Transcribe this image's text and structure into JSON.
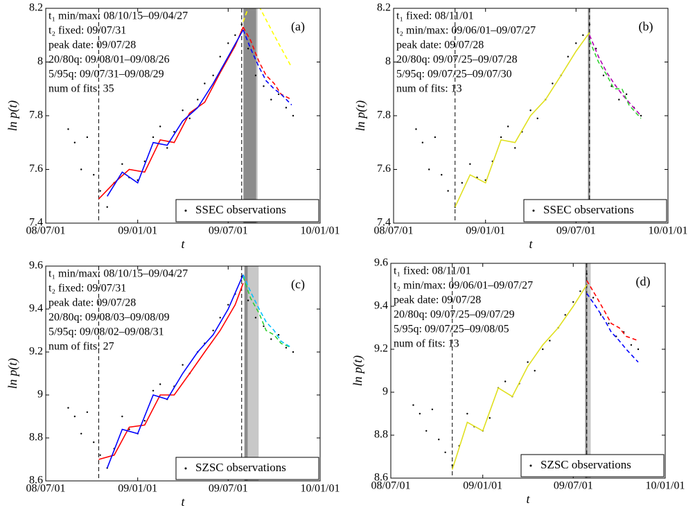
{
  "chart_data": [
    {
      "type": "scatter",
      "panel": "(a)",
      "xlabel": "t",
      "ylabel": "ln p(t)",
      "xlim": [
        "08/07/01",
        "10/01/01"
      ],
      "xticks": [
        "08/07/01",
        "09/01/01",
        "09/07/01",
        "10/01/01"
      ],
      "ylim": [
        7.4,
        8.2
      ],
      "yticks": [
        7.4,
        7.6,
        7.8,
        8,
        8.2
      ],
      "annotations": [
        "t₁ min/max: 08/10/15–09/04/27",
        "t₂ fixed: 09/07/31",
        "peak date: 09/07/28",
        "20/80q: 09/08/01–09/08/26",
        "5/95q: 09/07/31–09/08/29",
        "num of fits: 35"
      ],
      "vlines": [
        "08/10/15",
        "09/07/28"
      ],
      "bands": [
        {
          "x": [
            "09/07/31",
            "09/08/29"
          ],
          "color": "#c8c8c8"
        },
        {
          "x": [
            "09/08/01",
            "09/08/26"
          ],
          "color": "#8c8c8c"
        }
      ],
      "series": [
        {
          "name": "SSEC observations",
          "style": "dots",
          "color": "#000000",
          "x": [
            "08/08/15",
            "08/08/28",
            "08/09/10",
            "08/09/22",
            "08/10/05",
            "08/10/18",
            "08/11/01",
            "08/11/15",
            "08/12/01",
            "08/12/15",
            "09/01/01",
            "09/01/15",
            "09/02/01",
            "09/02/15",
            "09/03/01",
            "09/03/15",
            "09/04/01",
            "09/04/15",
            "09/05/01",
            "09/05/15",
            "09/06/01",
            "09/06/15",
            "09/07/01",
            "09/07/15",
            "09/07/28",
            "09/08/10",
            "09/08/25",
            "09/09/10",
            "09/09/25",
            "09/10/10",
            "09/10/25",
            "09/11/08"
          ],
          "values": [
            7.75,
            7.7,
            7.6,
            7.72,
            7.58,
            7.52,
            7.46,
            7.55,
            7.62,
            7.57,
            7.56,
            7.63,
            7.72,
            7.76,
            7.68,
            7.74,
            7.82,
            7.79,
            7.86,
            7.92,
            7.95,
            8.02,
            8.07,
            8.1,
            8.14,
            8.05,
            7.95,
            7.91,
            7.86,
            7.88,
            7.83,
            7.8
          ]
        },
        {
          "style": "solid",
          "color": "#ff0000",
          "x": [
            "08/10/15",
            "08/11/15",
            "08/12/15",
            "09/01/15",
            "09/02/15",
            "09/03/15",
            "09/04/15",
            "09/05/15",
            "09/06/15",
            "09/07/15",
            "09/07/31"
          ],
          "values": [
            7.49,
            7.55,
            7.6,
            7.59,
            7.71,
            7.7,
            7.81,
            7.85,
            7.96,
            8.06,
            8.13
          ]
        },
        {
          "style": "solid",
          "color": "#0000ff",
          "x": [
            "08/11/01",
            "08/12/01",
            "09/01/01",
            "09/02/01",
            "09/03/01",
            "09/04/01",
            "09/05/01",
            "09/06/01",
            "09/07/01",
            "09/07/31"
          ],
          "values": [
            7.5,
            7.59,
            7.55,
            7.7,
            7.69,
            7.78,
            7.83,
            7.92,
            8.02,
            8.12
          ]
        },
        {
          "style": "dashed",
          "color": "#ff0000",
          "x": [
            "09/07/31",
            "09/08/15",
            "09/09/01",
            "09/09/15",
            "09/10/01",
            "09/10/15",
            "09/11/05"
          ],
          "values": [
            8.13,
            8.08,
            8.0,
            7.95,
            7.92,
            7.88,
            7.86
          ]
        },
        {
          "style": "dashed",
          "color": "#0000ff",
          "x": [
            "09/07/31",
            "09/08/15",
            "09/09/01",
            "09/09/15",
            "09/10/01",
            "09/10/15",
            "09/11/05"
          ],
          "values": [
            8.12,
            8.05,
            7.98,
            7.93,
            7.9,
            7.88,
            7.84
          ]
        },
        {
          "style": "dashed",
          "color": "#ffff00",
          "x": [
            "09/07/31",
            "09/08/20",
            "09/10/01",
            "09/11/05"
          ],
          "values": [
            8.15,
            8.25,
            8.1,
            7.98
          ]
        }
      ]
    },
    {
      "type": "scatter",
      "panel": "(b)",
      "xlabel": "t",
      "ylabel": "ln p(t)",
      "xlim": [
        "08/07/01",
        "10/01/01"
      ],
      "xticks": [
        "08/07/01",
        "09/01/01",
        "09/07/01",
        "10/01/01"
      ],
      "ylim": [
        7.4,
        8.2
      ],
      "yticks": [
        7.4,
        7.6,
        7.8,
        8,
        8.2
      ],
      "annotations": [
        "t₁ fixed: 08/11/01",
        "t₂ min/max: 09/06/01–09/07/27",
        "peak date: 09/07/28",
        "20/80q: 09/07/25–09/07/28",
        "5/95q: 09/07/25–09/07/30",
        "num of fits: 13"
      ],
      "vlines": [
        "08/11/01",
        "09/07/28"
      ],
      "bands": [
        {
          "x": [
            "09/07/25",
            "09/07/30"
          ],
          "color": "#c8c8c8"
        },
        {
          "x": [
            "09/07/25",
            "09/07/28"
          ],
          "color": "#8c8c8c"
        }
      ],
      "series": [
        {
          "name": "SSEC observations",
          "style": "dots",
          "color": "#000000",
          "x": [
            "08/08/15",
            "08/08/28",
            "08/09/10",
            "08/09/22",
            "08/10/05",
            "08/10/18",
            "08/11/01",
            "08/11/15",
            "08/12/01",
            "08/12/15",
            "09/01/01",
            "09/01/15",
            "09/02/01",
            "09/02/15",
            "09/03/01",
            "09/03/15",
            "09/04/01",
            "09/04/15",
            "09/05/01",
            "09/05/15",
            "09/06/01",
            "09/06/15",
            "09/07/01",
            "09/07/15",
            "09/07/28",
            "09/08/10",
            "09/08/25",
            "09/09/10",
            "09/09/25",
            "09/10/10",
            "09/10/25",
            "09/11/08"
          ],
          "values": [
            7.75,
            7.7,
            7.6,
            7.72,
            7.58,
            7.52,
            7.46,
            7.55,
            7.62,
            7.57,
            7.56,
            7.63,
            7.72,
            7.76,
            7.68,
            7.74,
            7.82,
            7.79,
            7.86,
            7.92,
            7.95,
            8.02,
            8.07,
            8.1,
            8.14,
            8.05,
            7.95,
            7.91,
            7.86,
            7.88,
            7.83,
            7.8
          ]
        },
        {
          "style": "solid",
          "color": "#e0e020",
          "x": [
            "08/11/01",
            "08/12/01",
            "09/01/01",
            "09/02/01",
            "09/03/01",
            "09/04/01",
            "09/05/01",
            "09/06/01",
            "09/07/01",
            "09/07/28"
          ],
          "values": [
            7.46,
            7.58,
            7.55,
            7.71,
            7.7,
            7.8,
            7.86,
            7.95,
            8.04,
            8.11
          ]
        },
        {
          "style": "dashed",
          "color": "#b000b0",
          "x": [
            "09/07/28",
            "09/08/15",
            "09/09/01",
            "09/09/15",
            "09/10/01",
            "09/10/15",
            "09/11/08"
          ],
          "values": [
            8.1,
            8.02,
            7.96,
            7.92,
            7.88,
            7.85,
            7.8
          ]
        },
        {
          "style": "dashed",
          "color": "#30d030",
          "x": [
            "09/07/28",
            "09/08/15",
            "09/09/01",
            "09/09/15",
            "09/10/01",
            "09/10/15",
            "09/11/08"
          ],
          "values": [
            8.08,
            8.0,
            7.95,
            7.9,
            7.9,
            7.84,
            7.79
          ]
        }
      ]
    },
    {
      "type": "scatter",
      "panel": "(c)",
      "xlabel": "t",
      "ylabel": "ln p(t)",
      "xlim": [
        "08/07/01",
        "10/01/01"
      ],
      "xticks": [
        "08/07/01",
        "09/01/01",
        "09/07/01",
        "10/01/01"
      ],
      "ylim": [
        8.6,
        9.6
      ],
      "yticks": [
        8.6,
        8.8,
        9,
        9.2,
        9.4,
        9.6
      ],
      "annotations": [
        "t₁ min/max: 08/10/15–09/04/27",
        "t₂ fixed: 09/07/31",
        "peak date: 09/07/28",
        "20/80q: 09/08/03–09/08/09",
        "5/95q: 09/08/02–09/08/31",
        "num of fits: 27"
      ],
      "vlines": [
        "08/10/15",
        "09/07/28"
      ],
      "bands": [
        {
          "x": [
            "09/08/02",
            "09/08/31"
          ],
          "color": "#c8c8c8"
        },
        {
          "x": [
            "09/08/03",
            "09/08/09"
          ],
          "color": "#8c8c8c"
        }
      ],
      "series": [
        {
          "name": "SZSC observations",
          "style": "dots",
          "color": "#000000",
          "x": [
            "08/08/15",
            "08/08/28",
            "08/09/10",
            "08/09/22",
            "08/10/05",
            "08/10/18",
            "08/11/01",
            "08/11/15",
            "08/12/01",
            "08/12/15",
            "09/01/01",
            "09/01/15",
            "09/02/01",
            "09/02/15",
            "09/03/01",
            "09/03/15",
            "09/04/01",
            "09/04/15",
            "09/05/01",
            "09/05/15",
            "09/06/01",
            "09/06/15",
            "09/07/01",
            "09/07/15",
            "09/07/28",
            "09/08/10",
            "09/08/25",
            "09/09/10",
            "09/09/25",
            "09/10/10",
            "09/10/25",
            "09/11/08"
          ],
          "values": [
            8.94,
            8.9,
            8.82,
            8.92,
            8.78,
            8.72,
            8.66,
            8.75,
            8.9,
            8.84,
            8.82,
            8.88,
            9.02,
            9.05,
            8.98,
            9.04,
            9.14,
            9.1,
            9.2,
            9.24,
            9.3,
            9.36,
            9.42,
            9.47,
            9.55,
            9.44,
            9.36,
            9.32,
            9.26,
            9.28,
            9.22,
            9.2
          ]
        },
        {
          "style": "solid",
          "color": "#ff0000",
          "x": [
            "08/10/15",
            "08/11/15",
            "08/12/15",
            "09/01/15",
            "09/02/15",
            "09/03/15",
            "09/04/15",
            "09/05/15",
            "09/06/15",
            "09/07/15",
            "09/07/31"
          ],
          "values": [
            8.7,
            8.72,
            8.85,
            8.86,
            9.0,
            9.0,
            9.1,
            9.2,
            9.3,
            9.42,
            9.52
          ]
        },
        {
          "style": "solid",
          "color": "#0000ff",
          "x": [
            "08/11/01",
            "08/12/01",
            "09/01/01",
            "09/02/01",
            "09/03/01",
            "09/04/01",
            "09/05/01",
            "09/06/01",
            "09/07/01",
            "09/07/31"
          ],
          "values": [
            8.66,
            8.84,
            8.82,
            9.0,
            8.98,
            9.1,
            9.2,
            9.28,
            9.4,
            9.56
          ]
        },
        {
          "style": "dashed",
          "color": "#30d030",
          "x": [
            "09/07/31",
            "09/08/15",
            "09/09/01",
            "09/09/15",
            "09/10/01",
            "09/10/15",
            "09/11/05"
          ],
          "values": [
            9.55,
            9.45,
            9.38,
            9.3,
            9.28,
            9.24,
            9.22
          ]
        },
        {
          "style": "dashed",
          "color": "#00c0ff",
          "x": [
            "09/07/31",
            "09/08/15",
            "09/09/01",
            "09/09/15",
            "09/10/01",
            "09/10/15",
            "09/11/05"
          ],
          "values": [
            9.56,
            9.48,
            9.4,
            9.34,
            9.3,
            9.25,
            9.22
          ]
        }
      ]
    },
    {
      "type": "scatter",
      "panel": "(d)",
      "xlabel": "t",
      "ylabel": "ln p(t)",
      "xlim": [
        "08/07/01",
        "10/01/01"
      ],
      "xticks": [
        "08/07/01",
        "09/01/01",
        "09/07/01",
        "10/01/01"
      ],
      "ylim": [
        8.6,
        9.6
      ],
      "yticks": [
        8.6,
        8.8,
        9,
        9.2,
        9.4,
        9.6
      ],
      "annotations": [
        "t₁ fixed: 08/11/01",
        "t₂ min/max: 09/06/01–09/07/27",
        "peak date: 09/07/28",
        "20/80q: 09/07/25–09/07/29",
        "5/95q: 09/07/25–09/08/05",
        "num of fits: 13"
      ],
      "vlines": [
        "08/11/01",
        "09/07/28"
      ],
      "bands": [
        {
          "x": [
            "09/07/25",
            "09/08/05"
          ],
          "color": "#c8c8c8"
        },
        {
          "x": [
            "09/07/25",
            "09/07/29"
          ],
          "color": "#8c8c8c"
        }
      ],
      "series": [
        {
          "name": "SZSC observations",
          "style": "dots",
          "color": "#000000",
          "x": [
            "08/08/15",
            "08/08/28",
            "08/09/10",
            "08/09/22",
            "08/10/05",
            "08/10/18",
            "08/11/01",
            "08/11/15",
            "08/12/01",
            "08/12/15",
            "09/01/01",
            "09/01/15",
            "09/02/01",
            "09/02/15",
            "09/03/01",
            "09/03/15",
            "09/04/01",
            "09/04/15",
            "09/05/01",
            "09/05/15",
            "09/06/01",
            "09/06/15",
            "09/07/01",
            "09/07/15",
            "09/07/28",
            "09/08/10",
            "09/08/25",
            "09/09/10",
            "09/09/25",
            "09/10/10",
            "09/10/25",
            "09/11/08"
          ],
          "values": [
            8.94,
            8.9,
            8.82,
            8.92,
            8.78,
            8.72,
            8.66,
            8.75,
            8.9,
            8.84,
            8.82,
            8.88,
            9.02,
            9.05,
            8.98,
            9.04,
            9.14,
            9.1,
            9.2,
            9.24,
            9.3,
            9.36,
            9.42,
            9.47,
            9.55,
            9.44,
            9.36,
            9.32,
            9.26,
            9.28,
            9.22,
            9.2
          ]
        },
        {
          "style": "solid",
          "color": "#e0e020",
          "x": [
            "08/11/01",
            "08/12/01",
            "09/01/01",
            "09/02/01",
            "09/03/01",
            "09/04/01",
            "09/05/01",
            "09/06/01",
            "09/07/01",
            "09/07/28"
          ],
          "values": [
            8.64,
            8.86,
            8.82,
            9.02,
            8.98,
            9.12,
            9.22,
            9.3,
            9.4,
            9.5
          ]
        },
        {
          "style": "dashed",
          "color": "#ff0000",
          "x": [
            "09/07/28",
            "09/08/15",
            "09/09/01",
            "09/09/15",
            "09/10/01",
            "09/10/15",
            "09/11/08"
          ],
          "values": [
            9.52,
            9.45,
            9.38,
            9.32,
            9.3,
            9.26,
            9.24
          ]
        },
        {
          "style": "dashed",
          "color": "#0000ff",
          "x": [
            "09/07/28",
            "09/08/15",
            "09/09/01",
            "09/09/15",
            "09/10/01",
            "09/10/15",
            "09/11/08"
          ],
          "values": [
            9.46,
            9.4,
            9.34,
            9.28,
            9.24,
            9.2,
            9.14
          ]
        }
      ]
    }
  ]
}
